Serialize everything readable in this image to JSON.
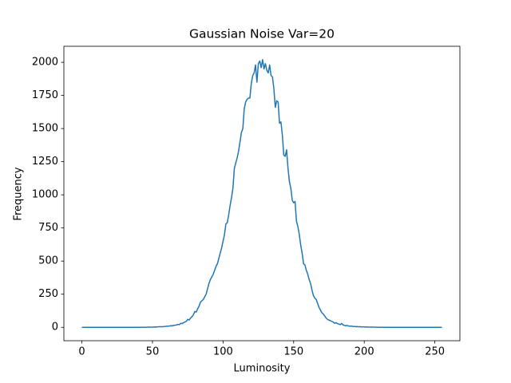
{
  "chart_data": {
    "type": "line",
    "title": "Gaussian Noise Var=20",
    "xlabel": "Luminosity",
    "ylabel": "Frequency",
    "color": "#1f77b4",
    "grid": false,
    "x": [
      0,
      1,
      2,
      3,
      4,
      5,
      6,
      7,
      8,
      9,
      10,
      11,
      12,
      13,
      14,
      15,
      16,
      17,
      18,
      19,
      20,
      21,
      22,
      23,
      24,
      25,
      26,
      27,
      28,
      29,
      30,
      31,
      32,
      33,
      34,
      35,
      36,
      37,
      38,
      39,
      40,
      41,
      42,
      43,
      44,
      45,
      46,
      47,
      48,
      49,
      50,
      51,
      52,
      53,
      54,
      55,
      56,
      57,
      58,
      59,
      60,
      61,
      62,
      63,
      64,
      65,
      66,
      67,
      68,
      69,
      70,
      71,
      72,
      73,
      74,
      75,
      76,
      77,
      78,
      79,
      80,
      81,
      82,
      83,
      84,
      85,
      86,
      87,
      88,
      89,
      90,
      91,
      92,
      93,
      94,
      95,
      96,
      97,
      98,
      99,
      100,
      101,
      102,
      103,
      104,
      105,
      106,
      107,
      108,
      109,
      110,
      111,
      112,
      113,
      114,
      115,
      116,
      117,
      118,
      119,
      120,
      121,
      122,
      123,
      124,
      125,
      126,
      127,
      128,
      129,
      130,
      131,
      132,
      133,
      134,
      135,
      136,
      137,
      138,
      139,
      140,
      141,
      142,
      143,
      144,
      145,
      146,
      147,
      148,
      149,
      150,
      151,
      152,
      153,
      154,
      155,
      156,
      157,
      158,
      159,
      160,
      161,
      162,
      163,
      164,
      165,
      166,
      167,
      168,
      169,
      170,
      171,
      172,
      173,
      174,
      175,
      176,
      177,
      178,
      179,
      180,
      181,
      182,
      183,
      184,
      185,
      186,
      187,
      188,
      189,
      190,
      191,
      192,
      193,
      194,
      195,
      196,
      197,
      198,
      199,
      200,
      201,
      202,
      203,
      204,
      205,
      206,
      207,
      208,
      209,
      210,
      211,
      212,
      213,
      214,
      215,
      216,
      217,
      218,
      219,
      220,
      221,
      222,
      223,
      224,
      225,
      226,
      227,
      228,
      229,
      230,
      231,
      232,
      233,
      234,
      235,
      236,
      237,
      238,
      239,
      240,
      241,
      242,
      243,
      244,
      245,
      246,
      247,
      248,
      249,
      250,
      251,
      252,
      253,
      254,
      255
    ],
    "values": [
      0,
      0,
      0,
      0,
      0,
      0,
      0,
      0,
      0,
      0,
      0,
      0,
      0,
      0,
      0,
      0,
      0,
      0,
      0,
      0,
      0,
      0,
      0,
      0,
      0,
      0,
      0,
      0,
      0,
      0,
      0,
      0,
      0,
      0,
      0,
      0,
      0,
      0,
      0,
      0,
      0,
      0,
      1,
      0,
      1,
      0,
      1,
      1,
      2,
      1,
      2,
      2,
      3,
      2,
      4,
      4,
      5,
      4,
      6,
      7,
      8,
      9,
      10,
      12,
      11,
      15,
      16,
      18,
      22,
      20,
      30,
      28,
      35,
      40,
      45,
      60,
      55,
      70,
      80,
      95,
      120,
      115,
      140,
      160,
      190,
      200,
      210,
      230,
      250,
      290,
      330,
      360,
      380,
      400,
      430,
      460,
      480,
      520,
      560,
      600,
      650,
      700,
      780,
      790,
      850,
      920,
      980,
      1050,
      1200,
      1240,
      1280,
      1330,
      1400,
      1470,
      1500,
      1650,
      1700,
      1720,
      1730,
      1730,
      1840,
      1900,
      1920,
      1980,
      1850,
      1990,
      2010,
      1960,
      2020,
      1950,
      1990,
      1940,
      1920,
      1980,
      1900,
      1890,
      1800,
      1660,
      1710,
      1700,
      1540,
      1550,
      1450,
      1300,
      1290,
      1340,
      1200,
      1100,
      1050,
      960,
      940,
      950,
      800,
      760,
      700,
      620,
      560,
      480,
      470,
      430,
      400,
      360,
      330,
      280,
      240,
      220,
      210,
      180,
      150,
      130,
      110,
      100,
      85,
      70,
      60,
      55,
      50,
      45,
      40,
      30,
      35,
      28,
      25,
      20,
      30,
      18,
      15,
      12,
      14,
      10,
      8,
      10,
      6,
      7,
      5,
      6,
      4,
      5,
      3,
      4,
      3,
      2,
      3,
      2,
      1,
      2,
      1,
      1,
      1,
      0,
      1,
      0,
      0,
      1,
      0,
      0,
      0,
      0,
      0,
      0,
      0,
      0,
      0,
      0,
      0,
      0,
      0,
      0,
      0,
      0,
      0,
      0,
      0,
      0,
      0,
      0,
      0,
      0,
      0,
      0,
      0,
      0,
      0,
      0,
      0,
      0,
      0,
      0,
      0,
      0,
      0,
      0,
      0,
      0,
      0,
      0
    ],
    "xlim": [
      -12.75,
      267.75
    ],
    "xticks": [
      0,
      50,
      100,
      150,
      200,
      250
    ],
    "ylim": [
      -101,
      2121
    ],
    "yticks": [
      0,
      250,
      500,
      750,
      1000,
      1250,
      1500,
      1750,
      2000
    ]
  }
}
